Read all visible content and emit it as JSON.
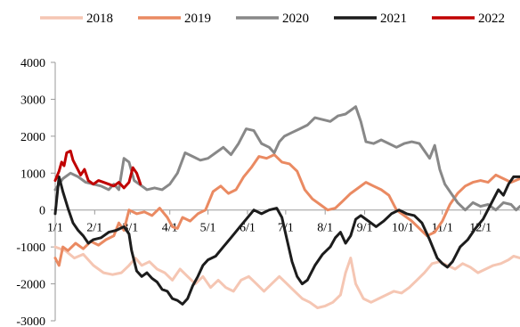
{
  "chart_data": {
    "type": "line",
    "title": "",
    "xlabel": "",
    "ylabel": "",
    "ylim": [
      -3000,
      4000
    ],
    "xlim": [
      0,
      365
    ],
    "y_ticks": [
      4000,
      3000,
      2000,
      1000,
      0,
      -1000,
      -2000,
      -3000
    ],
    "x_ticks": [
      {
        "label": "1/1",
        "day": 0
      },
      {
        "label": "2/1",
        "day": 31
      },
      {
        "label": "3/1",
        "day": 59
      },
      {
        "label": "4/1",
        "day": 90
      },
      {
        "label": "5/1",
        "day": 120
      },
      {
        "label": "6/1",
        "day": 151
      },
      {
        "label": "7/1",
        "day": 181
      },
      {
        "label": "8/1",
        "day": 212
      },
      {
        "label": "9/1",
        "day": 243
      },
      {
        "label": "10/1",
        "day": 273
      },
      {
        "label": "11/1",
        "day": 304
      },
      {
        "label": "12/1",
        "day": 334
      }
    ],
    "grid": false,
    "legend_position": "top",
    "series": [
      {
        "name": "2018",
        "color": "#f5c6b3",
        "points": [
          [
            0,
            -1000
          ],
          [
            8,
            -1100
          ],
          [
            15,
            -1300
          ],
          [
            22,
            -1200
          ],
          [
            30,
            -1500
          ],
          [
            38,
            -1700
          ],
          [
            45,
            -1750
          ],
          [
            52,
            -1700
          ],
          [
            58,
            -1500
          ],
          [
            63,
            -1300
          ],
          [
            68,
            -1500
          ],
          [
            74,
            -1400
          ],
          [
            80,
            -1600
          ],
          [
            86,
            -1700
          ],
          [
            92,
            -1900
          ],
          [
            98,
            -1600
          ],
          [
            104,
            -1800
          ],
          [
            110,
            -2000
          ],
          [
            116,
            -1800
          ],
          [
            122,
            -2100
          ],
          [
            128,
            -1900
          ],
          [
            134,
            -2100
          ],
          [
            140,
            -2200
          ],
          [
            146,
            -1900
          ],
          [
            152,
            -1800
          ],
          [
            158,
            -2000
          ],
          [
            164,
            -2200
          ],
          [
            170,
            -2000
          ],
          [
            176,
            -1800
          ],
          [
            182,
            -2000
          ],
          [
            188,
            -2200
          ],
          [
            194,
            -2400
          ],
          [
            200,
            -2500
          ],
          [
            206,
            -2650
          ],
          [
            212,
            -2600
          ],
          [
            218,
            -2500
          ],
          [
            224,
            -2300
          ],
          [
            228,
            -1700
          ],
          [
            232,
            -1300
          ],
          [
            236,
            -2000
          ],
          [
            242,
            -2400
          ],
          [
            248,
            -2500
          ],
          [
            254,
            -2400
          ],
          [
            260,
            -2300
          ],
          [
            266,
            -2200
          ],
          [
            272,
            -2250
          ],
          [
            278,
            -2100
          ],
          [
            284,
            -1900
          ],
          [
            290,
            -1700
          ],
          [
            296,
            -1450
          ],
          [
            302,
            -1400
          ],
          [
            308,
            -1500
          ],
          [
            314,
            -1600
          ],
          [
            320,
            -1450
          ],
          [
            326,
            -1550
          ],
          [
            332,
            -1700
          ],
          [
            338,
            -1600
          ],
          [
            344,
            -1500
          ],
          [
            350,
            -1450
          ],
          [
            356,
            -1350
          ],
          [
            360,
            -1250
          ],
          [
            365,
            -1300
          ]
        ]
      },
      {
        "name": "2019",
        "color": "#ea8a62",
        "points": [
          [
            0,
            -1300
          ],
          [
            3,
            -1500
          ],
          [
            6,
            -1000
          ],
          [
            10,
            -1100
          ],
          [
            16,
            -900
          ],
          [
            22,
            -1050
          ],
          [
            28,
            -850
          ],
          [
            34,
            -950
          ],
          [
            40,
            -800
          ],
          [
            46,
            -700
          ],
          [
            50,
            -350
          ],
          [
            54,
            -550
          ],
          [
            58,
            0
          ],
          [
            64,
            -100
          ],
          [
            70,
            -50
          ],
          [
            76,
            -150
          ],
          [
            82,
            50
          ],
          [
            88,
            -200
          ],
          [
            92,
            -450
          ],
          [
            96,
            -500
          ],
          [
            100,
            -200
          ],
          [
            106,
            -300
          ],
          [
            112,
            -100
          ],
          [
            118,
            0
          ],
          [
            124,
            500
          ],
          [
            130,
            650
          ],
          [
            136,
            450
          ],
          [
            142,
            550
          ],
          [
            148,
            900
          ],
          [
            154,
            1150
          ],
          [
            160,
            1450
          ],
          [
            166,
            1400
          ],
          [
            172,
            1500
          ],
          [
            178,
            1300
          ],
          [
            184,
            1250
          ],
          [
            190,
            1050
          ],
          [
            196,
            550
          ],
          [
            202,
            300
          ],
          [
            208,
            150
          ],
          [
            214,
            0
          ],
          [
            220,
            50
          ],
          [
            226,
            250
          ],
          [
            232,
            450
          ],
          [
            238,
            600
          ],
          [
            244,
            750
          ],
          [
            250,
            650
          ],
          [
            256,
            550
          ],
          [
            262,
            400
          ],
          [
            268,
            0
          ],
          [
            274,
            -150
          ],
          [
            280,
            -300
          ],
          [
            286,
            -500
          ],
          [
            292,
            -700
          ],
          [
            298,
            -600
          ],
          [
            304,
            -300
          ],
          [
            310,
            150
          ],
          [
            316,
            450
          ],
          [
            322,
            650
          ],
          [
            328,
            750
          ],
          [
            334,
            800
          ],
          [
            340,
            750
          ],
          [
            346,
            950
          ],
          [
            352,
            850
          ],
          [
            358,
            750
          ],
          [
            365,
            850
          ]
        ]
      },
      {
        "name": "2020",
        "color": "#888888",
        "points": [
          [
            0,
            550
          ],
          [
            6,
            850
          ],
          [
            12,
            1000
          ],
          [
            18,
            900
          ],
          [
            24,
            750
          ],
          [
            30,
            700
          ],
          [
            36,
            650
          ],
          [
            42,
            550
          ],
          [
            46,
            700
          ],
          [
            50,
            550
          ],
          [
            54,
            1400
          ],
          [
            58,
            1300
          ],
          [
            62,
            800
          ],
          [
            66,
            700
          ],
          [
            72,
            550
          ],
          [
            78,
            600
          ],
          [
            84,
            550
          ],
          [
            90,
            700
          ],
          [
            96,
            1000
          ],
          [
            102,
            1550
          ],
          [
            108,
            1450
          ],
          [
            114,
            1350
          ],
          [
            120,
            1400
          ],
          [
            126,
            1550
          ],
          [
            132,
            1700
          ],
          [
            138,
            1500
          ],
          [
            144,
            1800
          ],
          [
            150,
            2200
          ],
          [
            156,
            2150
          ],
          [
            162,
            1800
          ],
          [
            168,
            1700
          ],
          [
            172,
            1550
          ],
          [
            176,
            1850
          ],
          [
            180,
            2000
          ],
          [
            186,
            2100
          ],
          [
            192,
            2200
          ],
          [
            198,
            2300
          ],
          [
            204,
            2500
          ],
          [
            210,
            2450
          ],
          [
            216,
            2400
          ],
          [
            222,
            2550
          ],
          [
            228,
            2600
          ],
          [
            232,
            2700
          ],
          [
            236,
            2800
          ],
          [
            240,
            2400
          ],
          [
            244,
            1850
          ],
          [
            250,
            1800
          ],
          [
            256,
            1900
          ],
          [
            262,
            1800
          ],
          [
            268,
            1700
          ],
          [
            274,
            1800
          ],
          [
            280,
            1850
          ],
          [
            286,
            1800
          ],
          [
            290,
            1600
          ],
          [
            294,
            1400
          ],
          [
            298,
            1750
          ],
          [
            302,
            1100
          ],
          [
            306,
            700
          ],
          [
            310,
            500
          ],
          [
            316,
            200
          ],
          [
            322,
            0
          ],
          [
            328,
            200
          ],
          [
            334,
            100
          ],
          [
            340,
            150
          ],
          [
            346,
            0
          ],
          [
            352,
            200
          ],
          [
            358,
            150
          ],
          [
            362,
            0
          ],
          [
            365,
            100
          ]
        ]
      },
      {
        "name": "2021",
        "color": "#1c1c1c",
        "points": [
          [
            0,
            -100
          ],
          [
            3,
            900
          ],
          [
            6,
            500
          ],
          [
            10,
            50
          ],
          [
            14,
            -350
          ],
          [
            18,
            -550
          ],
          [
            22,
            -700
          ],
          [
            26,
            -900
          ],
          [
            30,
            -800
          ],
          [
            36,
            -750
          ],
          [
            42,
            -600
          ],
          [
            48,
            -550
          ],
          [
            54,
            -450
          ],
          [
            58,
            -650
          ],
          [
            60,
            -1100
          ],
          [
            64,
            -1650
          ],
          [
            68,
            -1800
          ],
          [
            72,
            -1700
          ],
          [
            76,
            -1850
          ],
          [
            80,
            -1950
          ],
          [
            84,
            -2150
          ],
          [
            88,
            -2200
          ],
          [
            92,
            -2400
          ],
          [
            96,
            -2450
          ],
          [
            100,
            -2550
          ],
          [
            104,
            -2400
          ],
          [
            108,
            -2050
          ],
          [
            112,
            -1800
          ],
          [
            116,
            -1500
          ],
          [
            120,
            -1350
          ],
          [
            126,
            -1250
          ],
          [
            132,
            -1000
          ],
          [
            138,
            -750
          ],
          [
            144,
            -500
          ],
          [
            150,
            -250
          ],
          [
            156,
            0
          ],
          [
            162,
            -100
          ],
          [
            168,
            0
          ],
          [
            174,
            50
          ],
          [
            178,
            -200
          ],
          [
            182,
            -800
          ],
          [
            186,
            -1400
          ],
          [
            190,
            -1800
          ],
          [
            194,
            -2000
          ],
          [
            198,
            -1900
          ],
          [
            204,
            -1500
          ],
          [
            210,
            -1200
          ],
          [
            216,
            -1000
          ],
          [
            220,
            -750
          ],
          [
            224,
            -600
          ],
          [
            228,
            -900
          ],
          [
            232,
            -700
          ],
          [
            236,
            -250
          ],
          [
            240,
            -150
          ],
          [
            246,
            -300
          ],
          [
            252,
            -450
          ],
          [
            258,
            -300
          ],
          [
            264,
            -100
          ],
          [
            270,
            0
          ],
          [
            276,
            -100
          ],
          [
            282,
            -150
          ],
          [
            288,
            -350
          ],
          [
            294,
            -800
          ],
          [
            300,
            -1300
          ],
          [
            304,
            -1450
          ],
          [
            308,
            -1550
          ],
          [
            312,
            -1400
          ],
          [
            318,
            -1000
          ],
          [
            324,
            -800
          ],
          [
            330,
            -500
          ],
          [
            336,
            -250
          ],
          [
            342,
            150
          ],
          [
            348,
            550
          ],
          [
            352,
            400
          ],
          [
            356,
            700
          ],
          [
            360,
            900
          ],
          [
            365,
            900
          ]
        ]
      },
      {
        "name": "2022",
        "color": "#c00000",
        "points": [
          [
            0,
            800
          ],
          [
            3,
            1050
          ],
          [
            5,
            1300
          ],
          [
            7,
            1200
          ],
          [
            9,
            1550
          ],
          [
            12,
            1600
          ],
          [
            14,
            1350
          ],
          [
            17,
            1150
          ],
          [
            20,
            950
          ],
          [
            23,
            1100
          ],
          [
            26,
            800
          ],
          [
            30,
            700
          ],
          [
            34,
            800
          ],
          [
            38,
            750
          ],
          [
            42,
            700
          ],
          [
            46,
            650
          ],
          [
            50,
            750
          ],
          [
            54,
            600
          ],
          [
            58,
            750
          ],
          [
            61,
            1150
          ],
          [
            64,
            1000
          ],
          [
            67,
            700
          ]
        ]
      }
    ]
  }
}
